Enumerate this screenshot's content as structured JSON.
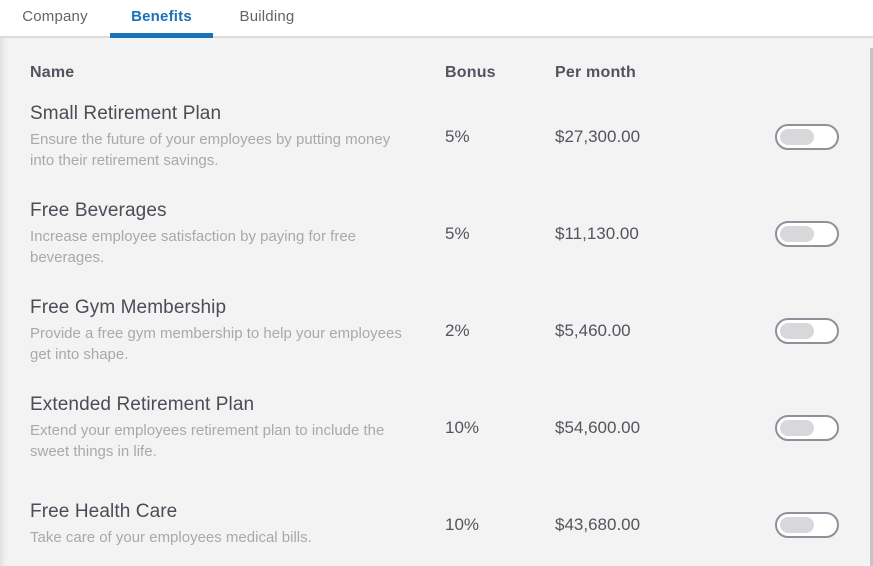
{
  "tabs": [
    {
      "label": "Company",
      "active": false
    },
    {
      "label": "Benefits",
      "active": true
    },
    {
      "label": "Building",
      "active": false
    }
  ],
  "colors": {
    "accent_blue": "#1a72b8",
    "content_bg": "#f3f3f4",
    "title_text": "#4c4c56",
    "desc_text": "#a9a9ad"
  },
  "table": {
    "headers": {
      "name": "Name",
      "bonus": "Bonus",
      "per_month": "Per month"
    },
    "rows": [
      {
        "name": "Small Retirement Plan",
        "description": "Ensure the future of your employees by putting money into their retirement savings.",
        "bonus": "5%",
        "per_month": "$27,300.00",
        "enabled": false
      },
      {
        "name": "Free Beverages",
        "description": "Increase employee satisfaction by paying for free beverages.",
        "bonus": "5%",
        "per_month": "$11,130.00",
        "enabled": false
      },
      {
        "name": "Free Gym Membership",
        "description": "Provide a free gym membership to help your employees get into shape.",
        "bonus": "2%",
        "per_month": "$5,460.00",
        "enabled": false
      },
      {
        "name": "Extended Retirement Plan",
        "description": "Extend your employees retirement plan to include the sweet things in life.",
        "bonus": "10%",
        "per_month": "$54,600.00",
        "enabled": false
      },
      {
        "name": "Free Health Care",
        "description": "Take care of your employees medical bills.",
        "bonus": "10%",
        "per_month": "$43,680.00",
        "enabled": false
      }
    ]
  }
}
